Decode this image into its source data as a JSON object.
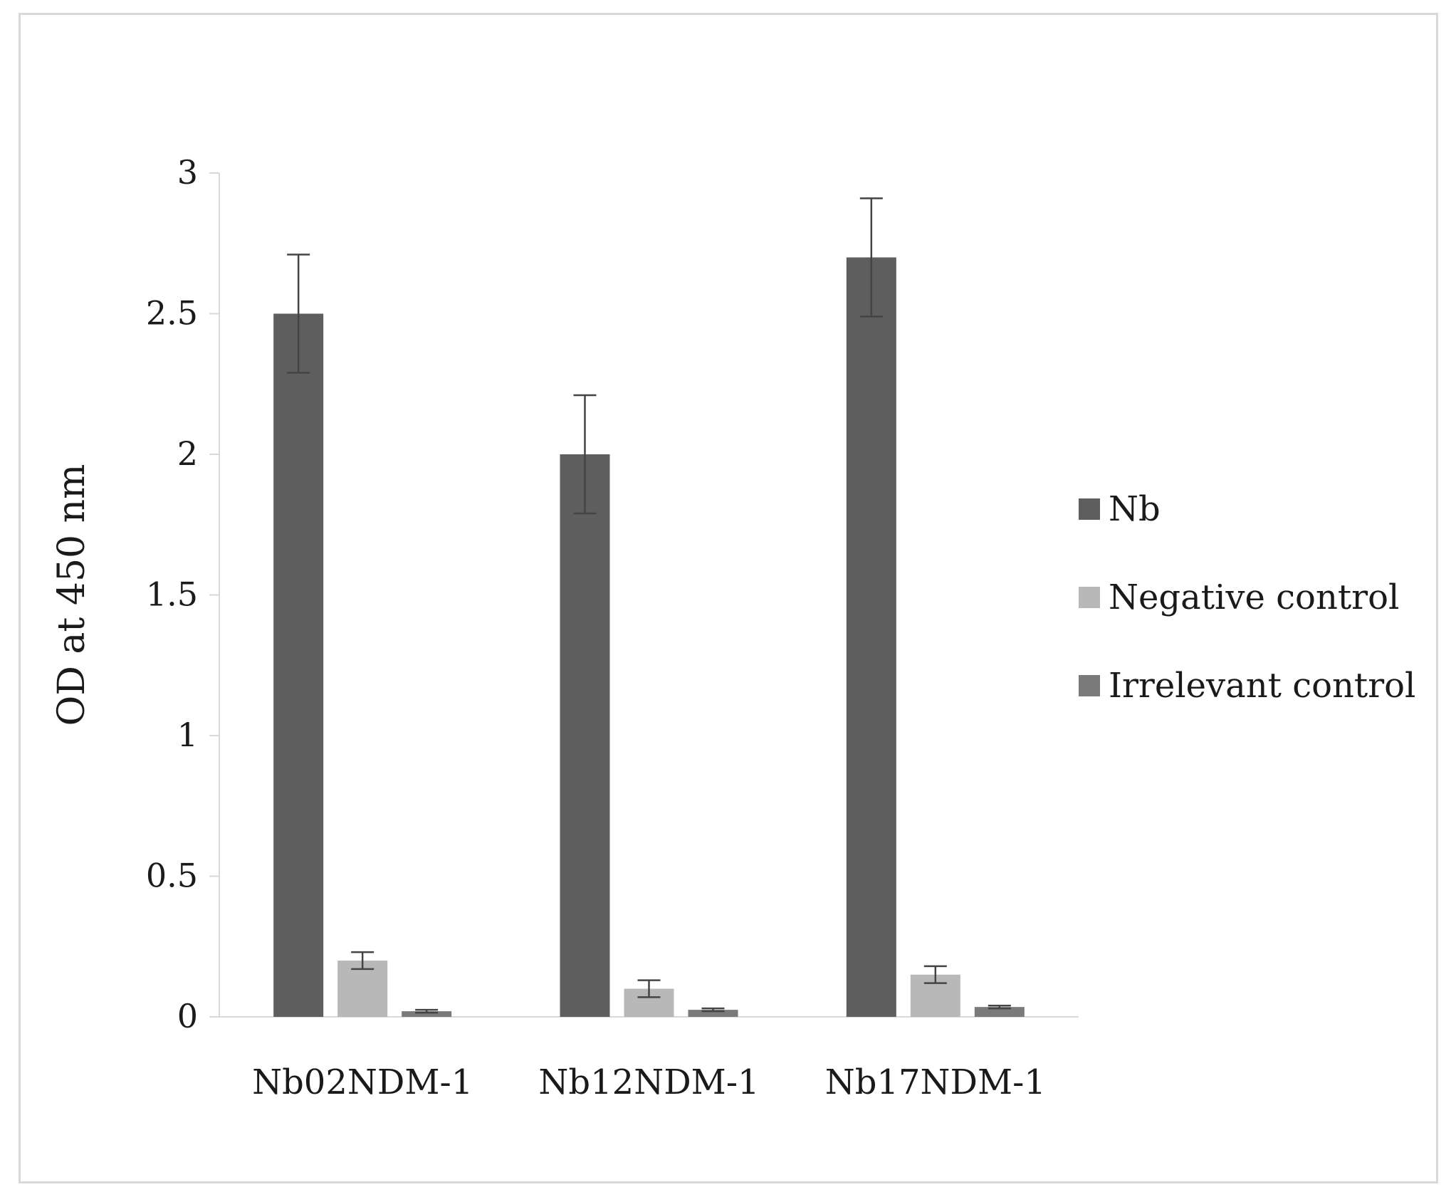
{
  "chart_data": {
    "type": "bar",
    "title": "",
    "xlabel": "",
    "ylabel": "OD at 450 nm",
    "ylim": [
      0,
      3
    ],
    "yticks": [
      0,
      0.5,
      1,
      1.5,
      2,
      2.5,
      3
    ],
    "ytick_labels": [
      "0",
      "0.5",
      "1",
      "1.5",
      "2",
      "2.5",
      "3"
    ],
    "categories": [
      "Nb02NDM-1",
      "Nb12NDM-1",
      "Nb17NDM-1"
    ],
    "series": [
      {
        "name": "Nb",
        "color": "#5e5e5e",
        "values": [
          2.5,
          2.0,
          2.7
        ],
        "errors": [
          0.21,
          0.21,
          0.21
        ]
      },
      {
        "name": "Negative control",
        "color": "#b8b8b8",
        "values": [
          0.2,
          0.1,
          0.15
        ],
        "errors": [
          0.03,
          0.03,
          0.03
        ]
      },
      {
        "name": "Irrelevant control",
        "color": "#7a7a7a",
        "values": [
          0.02,
          0.025,
          0.035
        ],
        "errors": [
          0.005,
          0.005,
          0.005
        ]
      }
    ],
    "grid": false,
    "legend_position": "right"
  }
}
